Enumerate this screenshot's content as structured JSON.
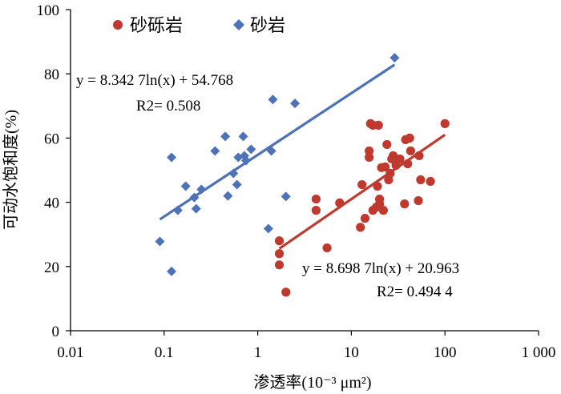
{
  "chart_data": {
    "type": "scatter",
    "xscale": "log",
    "xlim": [
      0.01,
      1000
    ],
    "ylim": [
      0,
      100
    ],
    "grid": false,
    "legend_position": "top-left",
    "xlabel": "渗透率(10⁻³ μm²)",
    "ylabel": "可动水饱和度(%)",
    "x_tick_labels": [
      "0.01",
      "0.1",
      "1",
      "10",
      "100",
      "1 000"
    ],
    "y_tick_labels": [
      "0",
      "20",
      "40",
      "60",
      "80",
      "100"
    ],
    "series": [
      {
        "name": "砂砾岩",
        "marker": "circle",
        "color": "#c0392f",
        "points": [
          [
            1.7,
            28.0
          ],
          [
            1.7,
            24.0
          ],
          [
            1.7,
            20.5
          ],
          [
            2.0,
            12.0
          ],
          [
            4.2,
            41.0
          ],
          [
            4.2,
            37.5
          ],
          [
            5.5,
            25.8
          ],
          [
            7.5,
            39.8
          ],
          [
            12.5,
            32.2
          ],
          [
            13.0,
            45.5
          ],
          [
            14.0,
            35.0
          ],
          [
            15.5,
            56.0
          ],
          [
            15.5,
            54.0
          ],
          [
            16.0,
            64.5
          ],
          [
            17.0,
            64.0
          ],
          [
            17.0,
            37.5
          ],
          [
            18.5,
            38.5
          ],
          [
            19.0,
            45.0
          ],
          [
            19.5,
            64.0
          ],
          [
            20.0,
            41.0
          ],
          [
            20.0,
            39.5
          ],
          [
            21.0,
            50.8
          ],
          [
            22.0,
            37.5
          ],
          [
            23.0,
            51.0
          ],
          [
            24.0,
            58.0
          ],
          [
            25.0,
            47.0
          ],
          [
            26.0,
            49.0
          ],
          [
            27.0,
            53.5
          ],
          [
            28.0,
            54.5
          ],
          [
            30.0,
            51.5
          ],
          [
            33.0,
            53.5
          ],
          [
            37.0,
            39.5
          ],
          [
            38.0,
            59.5
          ],
          [
            40.0,
            52.0
          ],
          [
            42.0,
            60.0
          ],
          [
            43.0,
            56.0
          ],
          [
            52.0,
            40.5
          ],
          [
            53.0,
            54.5
          ],
          [
            55.0,
            47.0
          ],
          [
            70.0,
            46.5
          ],
          [
            100.0,
            64.5
          ]
        ],
        "fit": {
          "slope": 8.6987,
          "intercept": 20.963,
          "x_range": [
            1.7,
            100
          ],
          "equation": "y = 8.698 7ln(x) + 20.963",
          "r2": "R2= 0.494 4"
        }
      },
      {
        "name": "砂岩",
        "marker": "diamond",
        "color": "#4e72b8",
        "points": [
          [
            0.09,
            27.8
          ],
          [
            0.12,
            54.0
          ],
          [
            0.12,
            18.5
          ],
          [
            0.14,
            37.5
          ],
          [
            0.17,
            45.0
          ],
          [
            0.21,
            41.5
          ],
          [
            0.22,
            38.0
          ],
          [
            0.25,
            44.0
          ],
          [
            0.35,
            56.0
          ],
          [
            0.45,
            60.5
          ],
          [
            0.48,
            42.0
          ],
          [
            0.55,
            49.0
          ],
          [
            0.6,
            45.5
          ],
          [
            0.62,
            54.0
          ],
          [
            0.7,
            60.5
          ],
          [
            0.72,
            54.5
          ],
          [
            0.75,
            53.0
          ],
          [
            0.85,
            56.5
          ],
          [
            1.3,
            31.8
          ],
          [
            1.4,
            56.0
          ],
          [
            1.45,
            72.0
          ],
          [
            2.0,
            41.8
          ],
          [
            2.5,
            70.8
          ],
          [
            29.0,
            85.0
          ]
        ],
        "fit": {
          "slope": 8.3427,
          "intercept": 54.768,
          "x_range": [
            0.09,
            29
          ],
          "equation": "y = 8.342 7ln(x) + 54.768",
          "r2": "R2= 0.508"
        }
      }
    ]
  }
}
